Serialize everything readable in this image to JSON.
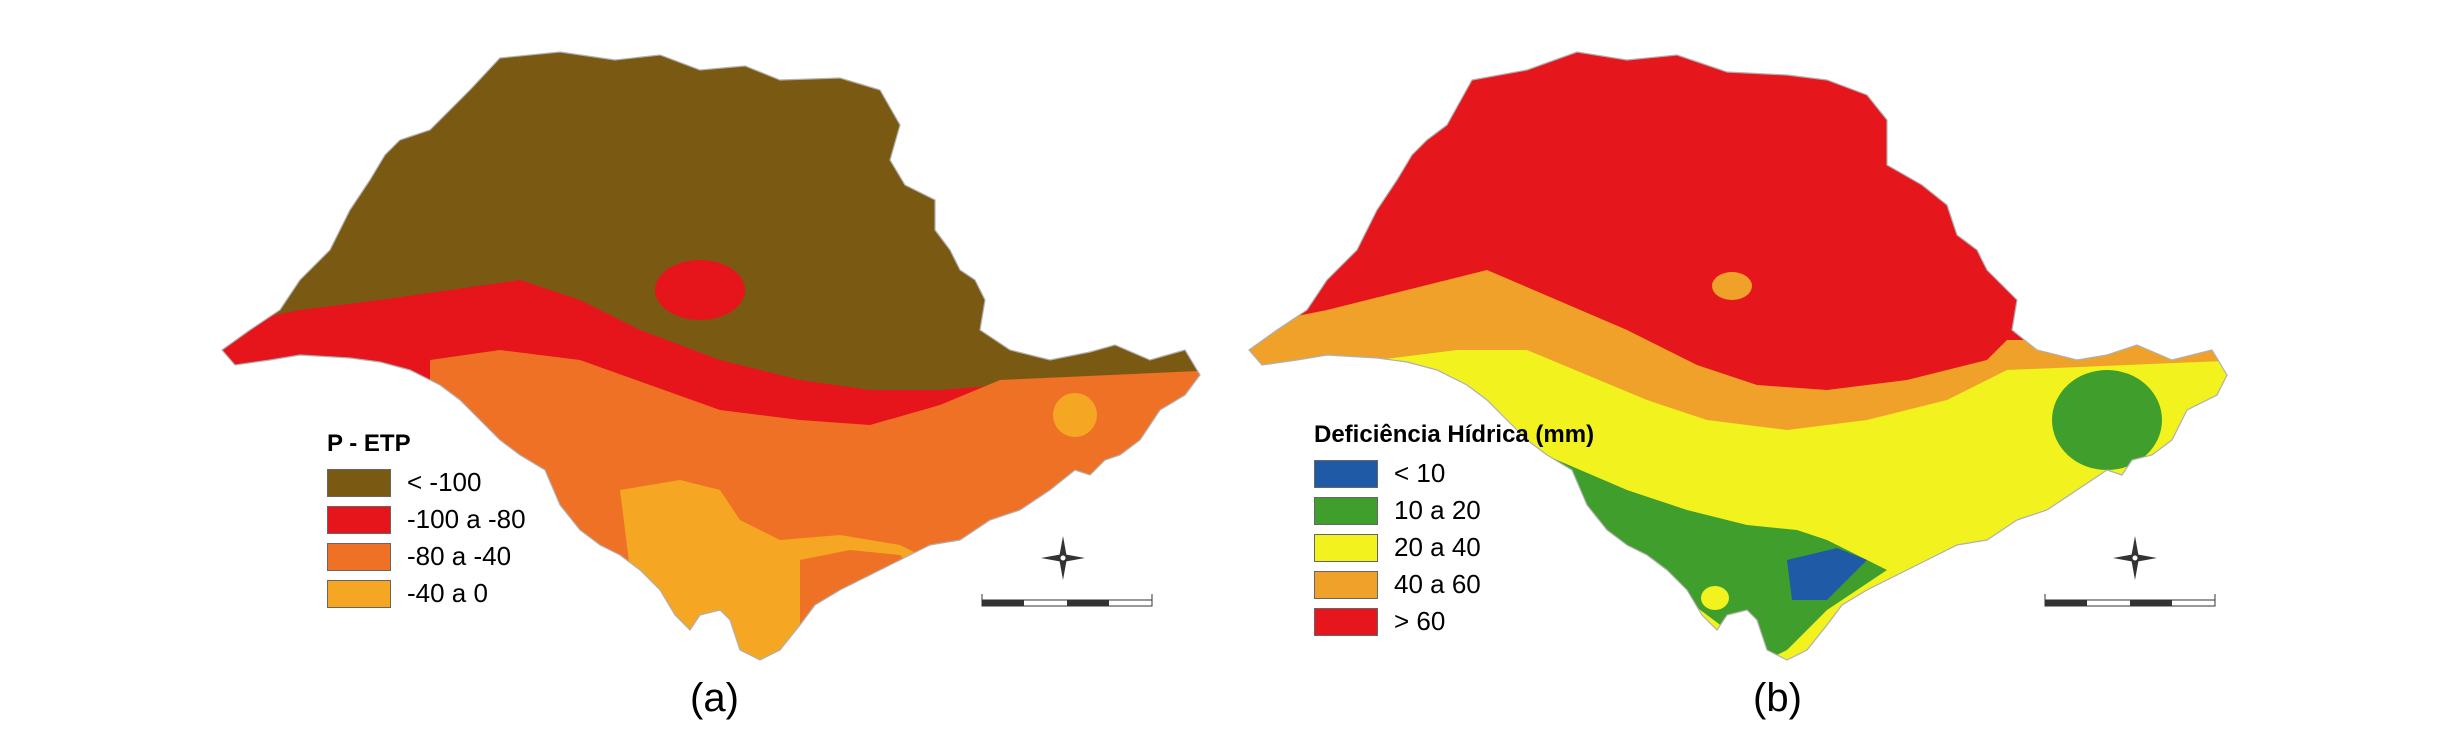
{
  "panels": [
    {
      "caption": "(a)",
      "legend": {
        "title": "P - ETP",
        "items": [
          {
            "label": "< -100",
            "color": "#7a5a12"
          },
          {
            "label": "-100 a -80",
            "color": "#e6141b"
          },
          {
            "label": "-80 a -40",
            "color": "#ef7126"
          },
          {
            "label": "-40 a 0",
            "color": "#f5a623"
          }
        ]
      }
    },
    {
      "caption": "(b)",
      "legend": {
        "title": "Deficiência Hídrica (mm)",
        "items": [
          {
            "label": "< 10",
            "color": "#1f5aa6"
          },
          {
            "label": "10 a 20",
            "color": "#3f9e2c"
          },
          {
            "label": "20 a 40",
            "color": "#f2f21e"
          },
          {
            "label": "40 a 60",
            "color": "#f0a12a"
          },
          {
            "label": "> 60",
            "color": "#e5171d"
          }
        ]
      }
    }
  ]
}
